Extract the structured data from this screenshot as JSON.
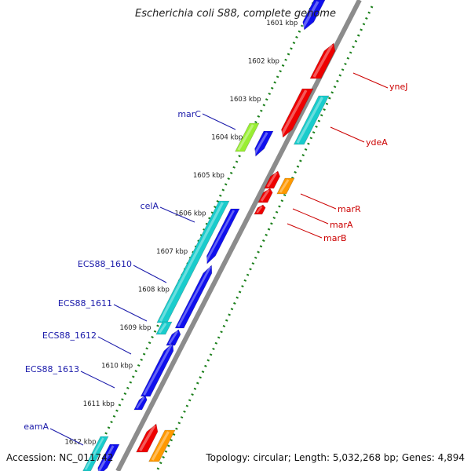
{
  "title": "Escherichia coli S88, complete genome",
  "footer": {
    "accession": "Accession: NC_011742",
    "summary": "Topology: circular; Length: 5,032,268 bp; Genes: 4,894"
  },
  "colors": {
    "backbone": "#8c8c8c",
    "ruler": "#1a7f1a",
    "left_label": "#1a1aaa",
    "right_label": "#cc0000",
    "blue_gene": "#1010ee",
    "cyan_gene": "#19cccc",
    "lime_gene": "#99ee33",
    "red_gene": "#ee0000",
    "orange_gene": "#ff9900",
    "tick_text": "#222222"
  },
  "kbp_ticks": [
    "1601 kbp",
    "1602 kbp",
    "1603 kbp",
    "1604 kbp",
    "1605 kbp",
    "1606 kbp",
    "1607 kbp",
    "1608 kbp",
    "1609 kbp",
    "1610 kbp",
    "1611 kbp",
    "1612 kbp"
  ],
  "left_genes": [
    {
      "name": "marC"
    },
    {
      "name": "celA"
    },
    {
      "name": "ECS88_1610"
    },
    {
      "name": "ECS88_1611"
    },
    {
      "name": "ECS88_1612"
    },
    {
      "name": "ECS88_1613"
    },
    {
      "name": "eamA"
    }
  ],
  "right_genes": [
    {
      "name": "yneJ"
    },
    {
      "name": "ydeA"
    },
    {
      "name": "marR"
    },
    {
      "name": "marA"
    },
    {
      "name": "marB"
    }
  ]
}
